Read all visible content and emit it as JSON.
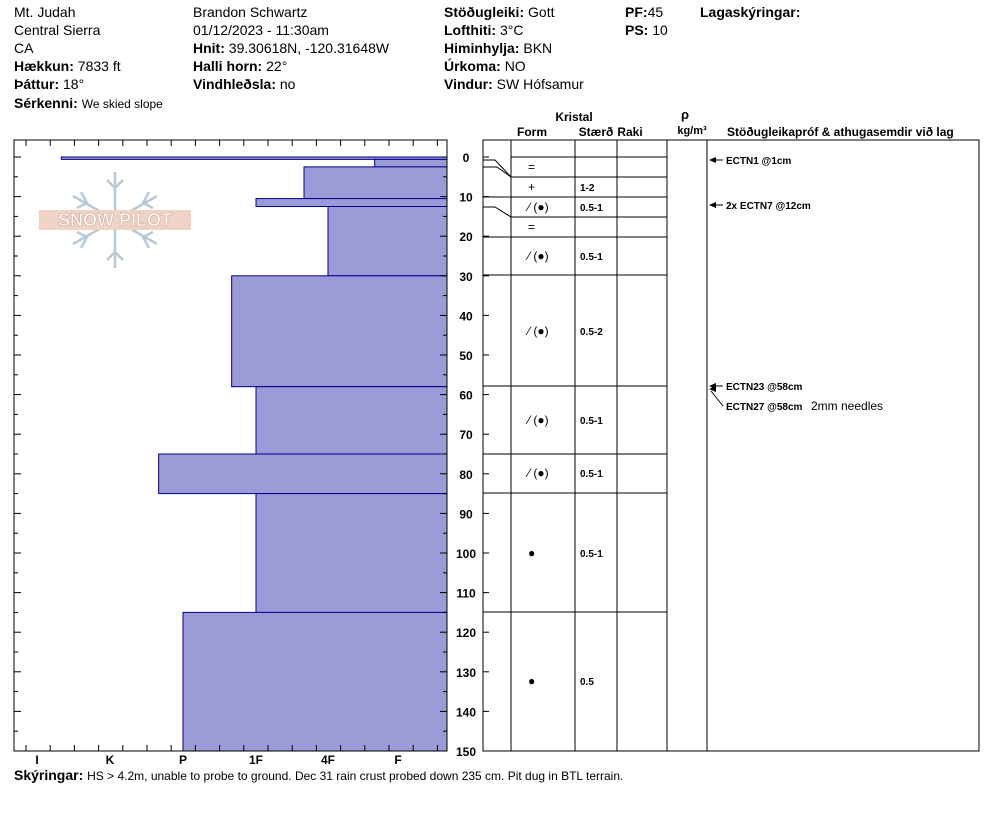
{
  "header": {
    "location": "Mt. Judah",
    "range": "Central Sierra",
    "state": "CA",
    "elevation_label": "Hækkun:",
    "elevation": "7833 ft",
    "aspect_label": "Þáttur:",
    "aspect": "18°",
    "feature_label": "Sérkenni:",
    "feature": "We skied slope",
    "observer": "Brandon Schwartz",
    "datetime": "01/12/2023 - 11:30am",
    "coords_label": "Hnit:",
    "coords": "39.30618N, -120.31648W",
    "slope_label": "Halli horn:",
    "slope": "22°",
    "wind_loading_label": "Vindhleðsla:",
    "wind_loading": "no",
    "stability_label": "Stöðugleiki:",
    "stability": "Gott",
    "air_temp_label": "Lofthiti:",
    "air_temp": "3°C",
    "sky_label": "Himinhylja:",
    "sky": "BKN",
    "precip_label": "Úrkoma:",
    "precip": "NO",
    "wind_label": "Vindur:",
    "wind": "SW Hófsamur",
    "pf_label": "PF:",
    "pf": "45",
    "ps_label": "PS:",
    "ps": "10",
    "layer_notes_label": "Lagaskýringar:"
  },
  "logo_text": "SNOW PILOT",
  "footer": {
    "label": "Skýringar:",
    "text": "HS > 4.2m, unable to probe to ground. Dec 31 rain crust probed down 235 cm. Pit dug in BTL terrain."
  },
  "columns": {
    "crystal": "Kristal",
    "form": "Form",
    "size": "Stærð",
    "moisture": "Raki",
    "rho": "ρ",
    "density_unit": "kg/m³",
    "tests": "Stöðugleikapróf & athugasemdir við lag"
  },
  "colors": {
    "fill": "#9b9bd7",
    "stroke": "#00008b"
  },
  "chart_data": {
    "type": "bar",
    "title": "",
    "y_axis": {
      "label": "",
      "range": [
        0,
        150
      ],
      "ticks": [
        0,
        10,
        20,
        30,
        40,
        50,
        60,
        70,
        80,
        90,
        100,
        110,
        120,
        130,
        140,
        150
      ],
      "inverted": true
    },
    "x_axis": {
      "ticks": [
        "I",
        "K",
        "P",
        "1F",
        "4F",
        "F"
      ],
      "reversed": true
    },
    "hardness_profile": [
      {
        "top": 0,
        "bottom": 0.6,
        "hardness": "I-"
      },
      {
        "top": 0.6,
        "bottom": 2.5,
        "hardness": "F+"
      },
      {
        "top": 2.5,
        "bottom": 10.5,
        "hardness": "4F+"
      },
      {
        "top": 10.5,
        "bottom": 12.5,
        "hardness": "1F"
      },
      {
        "top": 12.5,
        "bottom": 30,
        "hardness": "4F"
      },
      {
        "top": 30,
        "bottom": 58,
        "hardness": "1F+"
      },
      {
        "top": 58,
        "bottom": 75,
        "hardness": "1F"
      },
      {
        "top": 75,
        "bottom": 85,
        "hardness": "P+"
      },
      {
        "top": 85,
        "bottom": 115,
        "hardness": "1F"
      },
      {
        "top": 115,
        "bottom": 150,
        "hardness": "P"
      }
    ],
    "layer_boundaries": [
      0,
      5,
      10,
      15,
      20,
      30,
      58,
      75,
      85,
      115,
      150
    ],
    "layers": [
      {
        "mid": 2.5,
        "form": "=",
        "size": ""
      },
      {
        "mid": 7.5,
        "form": "+",
        "size": "1-2"
      },
      {
        "mid": 12.5,
        "form": "⁄ (●)",
        "size": "0.5-1"
      },
      {
        "mid": 17.5,
        "form": "=",
        "size": ""
      },
      {
        "mid": 25,
        "form": "⁄ (●)",
        "size": "0.5-1"
      },
      {
        "mid": 44,
        "form": "⁄ (●)",
        "size": "0.5-2"
      },
      {
        "mid": 66.5,
        "form": "⁄ (●)",
        "size": "0.5-1"
      },
      {
        "mid": 80,
        "form": "⁄ (●)",
        "size": "0.5-1"
      },
      {
        "mid": 100,
        "form": "●",
        "size": "0.5-1"
      },
      {
        "mid": 132.5,
        "form": "●",
        "size": "0.5"
      }
    ],
    "tests": [
      {
        "depth": 1,
        "text": "ECTN1 @1cm",
        "comment": ""
      },
      {
        "depth": 12,
        "text": "2x ECTN7 @12cm",
        "comment": ""
      },
      {
        "depth": 58,
        "text": "ECTN23 @58cm",
        "comment": ""
      },
      {
        "depth": 58,
        "text": "ECTN27 @58cm",
        "comment": "2mm needles"
      }
    ]
  }
}
